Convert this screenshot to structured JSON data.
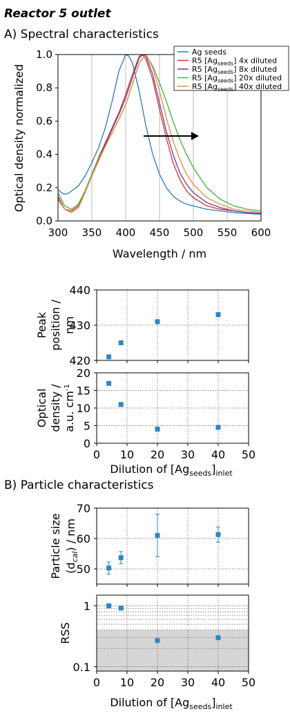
{
  "page_title": "Reactor 5 outlet",
  "colors": {
    "marker": "#2e86c1",
    "shade": "#d6d6d6",
    "ag": "#2878b8",
    "r4": "#d9302c",
    "r8": "#6a3d9a",
    "r20": "#3fae49",
    "r40": "#f08a3c"
  },
  "section_a_label": "A) Spectral characteristics",
  "section_b_label": "B) Particle characteristics",
  "chart_data": [
    {
      "type": "line",
      "title": "",
      "xlabel": "Wavelength / nm",
      "ylabel": "Optical density normalized",
      "xlim": [
        300,
        600
      ],
      "ylim": [
        0,
        1.0
      ],
      "xticks": [
        "300",
        "350",
        "400",
        "450",
        "500",
        "550",
        "600"
      ],
      "yticks": [
        "0.0",
        "0.2",
        "0.4",
        "0.6",
        "0.8",
        "1.0"
      ],
      "grid": "vertical",
      "legend": "top-right",
      "annotation": "arrow pointing right",
      "series": [
        {
          "name": "Ag seeds",
          "x": [
            300,
            305,
            310,
            315,
            320,
            330,
            340,
            350,
            360,
            370,
            380,
            390,
            400,
            405,
            410,
            420,
            430,
            440,
            450,
            460,
            470,
            480,
            490,
            500,
            520,
            540,
            560,
            580,
            600
          ],
          "y": [
            0.19,
            0.17,
            0.16,
            0.165,
            0.18,
            0.21,
            0.27,
            0.35,
            0.44,
            0.56,
            0.72,
            0.9,
            1.0,
            0.99,
            0.95,
            0.78,
            0.57,
            0.4,
            0.28,
            0.2,
            0.15,
            0.12,
            0.1,
            0.09,
            0.07,
            0.06,
            0.05,
            0.045,
            0.04
          ]
        },
        {
          "name": "R5 [Ag_seeds] 4x diluted",
          "x": [
            300,
            310,
            320,
            330,
            340,
            350,
            360,
            370,
            380,
            390,
            400,
            410,
            420,
            425,
            430,
            440,
            450,
            460,
            470,
            480,
            490,
            500,
            520,
            540,
            560,
            580,
            600
          ],
          "y": [
            0.13,
            0.07,
            0.06,
            0.09,
            0.18,
            0.28,
            0.38,
            0.47,
            0.56,
            0.65,
            0.76,
            0.88,
            0.99,
            1.0,
            0.97,
            0.85,
            0.67,
            0.5,
            0.35,
            0.25,
            0.18,
            0.14,
            0.09,
            0.07,
            0.06,
            0.05,
            0.045
          ]
        },
        {
          "name": "R5 [Ag_seeds] 8x diluted",
          "x": [
            300,
            310,
            320,
            330,
            340,
            350,
            360,
            370,
            380,
            390,
            400,
            410,
            420,
            426,
            430,
            440,
            450,
            460,
            470,
            480,
            490,
            500,
            520,
            540,
            560,
            580,
            600
          ],
          "y": [
            0.15,
            0.07,
            0.05,
            0.08,
            0.17,
            0.27,
            0.37,
            0.46,
            0.55,
            0.64,
            0.74,
            0.86,
            0.98,
            1.0,
            0.99,
            0.88,
            0.71,
            0.54,
            0.4,
            0.29,
            0.22,
            0.17,
            0.11,
            0.08,
            0.06,
            0.05,
            0.045
          ]
        },
        {
          "name": "R5 [Ag_seeds] 20x diluted",
          "x": [
            300,
            310,
            320,
            330,
            340,
            350,
            360,
            370,
            380,
            390,
            400,
            410,
            420,
            430,
            440,
            450,
            460,
            470,
            480,
            490,
            500,
            520,
            540,
            560,
            580,
            600
          ],
          "y": [
            0.17,
            0.09,
            0.07,
            0.1,
            0.18,
            0.28,
            0.37,
            0.45,
            0.53,
            0.61,
            0.7,
            0.82,
            0.95,
            1.0,
            0.93,
            0.83,
            0.72,
            0.6,
            0.49,
            0.4,
            0.32,
            0.2,
            0.13,
            0.09,
            0.07,
            0.06
          ]
        },
        {
          "name": "R5 [Ag_seeds] 40x diluted",
          "x": [
            300,
            310,
            320,
            330,
            340,
            350,
            360,
            370,
            380,
            390,
            400,
            410,
            420,
            430,
            440,
            450,
            460,
            470,
            480,
            490,
            500,
            520,
            540,
            560,
            580,
            600
          ],
          "y": [
            0.14,
            0.07,
            0.05,
            0.08,
            0.17,
            0.27,
            0.36,
            0.45,
            0.53,
            0.61,
            0.7,
            0.82,
            0.95,
            1.0,
            0.92,
            0.78,
            0.62,
            0.48,
            0.37,
            0.28,
            0.22,
            0.14,
            0.1,
            0.07,
            0.06,
            0.05
          ]
        }
      ]
    },
    {
      "type": "scatter",
      "xlabel": "",
      "ylabel": "Peak position / nm",
      "xlim": [
        0,
        50
      ],
      "ylim": [
        420,
        440
      ],
      "yticks": [
        "420",
        "430",
        "440"
      ],
      "grid": "dotted",
      "series": [
        {
          "x": [
            4,
            8,
            20,
            40
          ],
          "y": [
            421,
            425,
            431,
            433
          ]
        }
      ]
    },
    {
      "type": "scatter",
      "xlabel": "Dilution of [Ag_seeds]_inlet",
      "ylabel": "Optical density / a.u. cm-1",
      "xlim": [
        0,
        50
      ],
      "ylim": [
        0,
        20
      ],
      "xticks": [
        "0",
        "10",
        "20",
        "30",
        "40",
        "50"
      ],
      "yticks": [
        "0",
        "5",
        "10",
        "15",
        "20"
      ],
      "grid": "dotted",
      "series": [
        {
          "x": [
            4,
            8,
            20,
            40
          ],
          "y": [
            17,
            11,
            4,
            4.5
          ]
        }
      ]
    },
    {
      "type": "scatter",
      "xlabel": "",
      "ylabel": "Particle size (d_cal) / nm",
      "xlim": [
        0,
        50
      ],
      "ylim": [
        45,
        70
      ],
      "yticks": [
        "50",
        "60",
        "70"
      ],
      "grid": "dotted",
      "series": [
        {
          "x": [
            4,
            8,
            20,
            40
          ],
          "y": [
            50.3,
            53.7,
            61,
            61.3
          ],
          "err": [
            2,
            2,
            7,
            2.5
          ]
        }
      ]
    },
    {
      "type": "scatter",
      "xlabel": "Dilution of [Ag_seeds]_inlet",
      "ylabel": "RSS",
      "xlim": [
        0,
        50
      ],
      "ylim": [
        0.085,
        1.5
      ],
      "yscale": "log",
      "xticks": [
        "0",
        "10",
        "20",
        "30",
        "40",
        "50"
      ],
      "yticks": [
        "0.1",
        "1"
      ],
      "grid": "dotted",
      "shaded_band": [
        0.085,
        0.4
      ],
      "series": [
        {
          "x": [
            4,
            8,
            20,
            40
          ],
          "y": [
            1.0,
            0.92,
            0.27,
            0.3
          ]
        }
      ]
    }
  ],
  "labels": {
    "legend": [
      {
        "pre": "Ag seeds",
        "sub": "",
        "post": ""
      },
      {
        "pre": "R5 [Ag",
        "sub": "seeds",
        "post": "] 4x diluted"
      },
      {
        "pre": "R5 [Ag",
        "sub": "seeds",
        "post": "] 8x diluted"
      },
      {
        "pre": "R5 [Ag",
        "sub": "seeds",
        "post": "] 20x diluted"
      },
      {
        "pre": "R5 [Ag",
        "sub": "seeds",
        "post": "] 40x diluted"
      }
    ],
    "spectrum_ylabel": "Optical density normalized",
    "spectrum_xlabel": "Wavelength / nm",
    "peak_ylabel_1": "Peak",
    "peak_ylabel_2": "position /",
    "peak_ylabel_3": "nm",
    "od_ylabel_1": "Optical",
    "od_ylabel_2": "density /",
    "od_ylabel_3": "a.u. cm",
    "od_ylabel_sup": "-1",
    "dilution_xlabel_pre": "Dilution of [Ag",
    "dilution_xlabel_sub1": "seeds",
    "dilution_xlabel_mid": "]",
    "dilution_xlabel_sub2": "inlet",
    "size_ylabel_1": "Particle size",
    "size_ylabel_2": "(d",
    "size_ylabel_sub": "cal",
    "size_ylabel_3": ") / nm",
    "rss_ylabel": "RSS"
  }
}
